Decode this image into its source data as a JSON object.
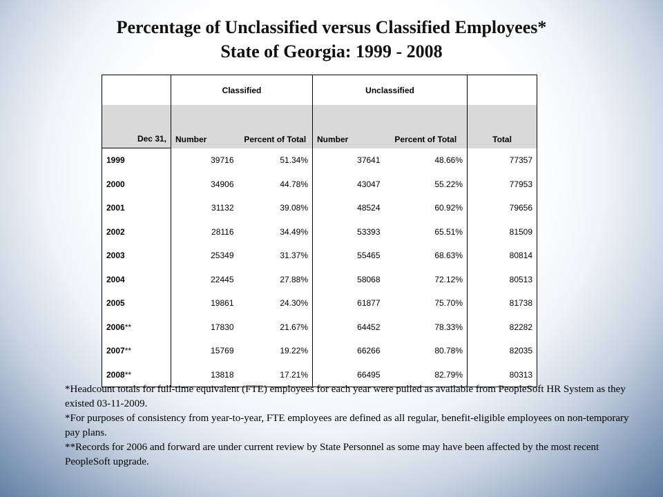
{
  "title": {
    "line1": "Percentage of Unclassified versus Classified Employees*",
    "line2": "State of Georgia: 1999 - 2008"
  },
  "table": {
    "group_headers": {
      "classified": "Classified",
      "unclassified": "Unclassified"
    },
    "columns": {
      "date": "Dec 31,",
      "class_number": "Number",
      "class_percent": "Percent of Total",
      "unclass_number": "Number",
      "unclass_percent": "Percent of Total",
      "total": "Total"
    },
    "rows": [
      {
        "year": "1999",
        "suffix": "",
        "class_number": "39716",
        "class_percent": "51.34%",
        "unclass_number": "37641",
        "unclass_percent": "48.66%",
        "total": "77357"
      },
      {
        "year": "2000",
        "suffix": "",
        "class_number": "34906",
        "class_percent": "44.78%",
        "unclass_number": "43047",
        "unclass_percent": "55.22%",
        "total": "77953"
      },
      {
        "year": "2001",
        "suffix": "",
        "class_number": "31132",
        "class_percent": "39.08%",
        "unclass_number": "48524",
        "unclass_percent": "60.92%",
        "total": "79656"
      },
      {
        "year": "2002",
        "suffix": "",
        "class_number": "28116",
        "class_percent": "34.49%",
        "unclass_number": "53393",
        "unclass_percent": "65.51%",
        "total": "81509"
      },
      {
        "year": "2003",
        "suffix": "",
        "class_number": "25349",
        "class_percent": "31.37%",
        "unclass_number": "55465",
        "unclass_percent": "68.63%",
        "total": "80814"
      },
      {
        "year": "2004",
        "suffix": "",
        "class_number": "22445",
        "class_percent": "27.88%",
        "unclass_number": "58068",
        "unclass_percent": "72.12%",
        "total": "80513"
      },
      {
        "year": "2005",
        "suffix": "",
        "class_number": "19861",
        "class_percent": "24.30%",
        "unclass_number": "61877",
        "unclass_percent": "75.70%",
        "total": "81738"
      },
      {
        "year": "2006",
        "suffix": "**",
        "class_number": "17830",
        "class_percent": "21.67%",
        "unclass_number": "64452",
        "unclass_percent": "78.33%",
        "total": "82282"
      },
      {
        "year": "2007",
        "suffix": "**",
        "class_number": "15769",
        "class_percent": "19.22%",
        "unclass_number": "66266",
        "unclass_percent": "80.78%",
        "total": "82035"
      },
      {
        "year": "2008",
        "suffix": "**",
        "class_number": "13818",
        "class_percent": "17.21%",
        "unclass_number": "66495",
        "unclass_percent": "82.79%",
        "total": "80313"
      }
    ]
  },
  "notes": [
    "*Headcount totals for full-time equivalent (FTE) employees for each year were pulled as available from PeopleSoft HR System as they existed 03-11-2009.",
    "*For purposes of consistency from year-to-year, FTE employees are defined as all regular, benefit-eligible employees on non-temporary pay plans.",
    "**Records for 2006 and forward are under current review by State Personnel as some may have been affected by the most recent PeopleSoft upgrade."
  ]
}
